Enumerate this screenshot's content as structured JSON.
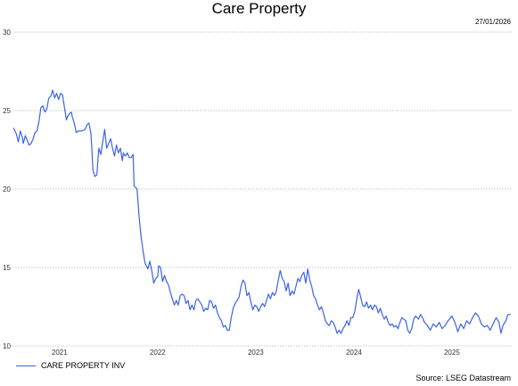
{
  "chart_data": {
    "type": "line",
    "title": "Care Property",
    "date_stamp": "27/01/2026",
    "source": "Source: LSEG Datastream",
    "ylim": [
      10,
      30
    ],
    "yticks": [
      10,
      15,
      20,
      25,
      30
    ],
    "xlim": [
      2020.52,
      2025.61
    ],
    "xticks": [
      {
        "label": "2021",
        "x": 2021.0
      },
      {
        "label": "2022",
        "x": 2022.0
      },
      {
        "label": "2023",
        "x": 2023.0
      },
      {
        "label": "2024",
        "x": 2024.0
      },
      {
        "label": "2025",
        "x": 2025.0
      }
    ],
    "grid": true,
    "legend_position": "bottom-left",
    "series": [
      {
        "name": "CARE PROPERTY INV",
        "color": "#3b63e8",
        "points": [
          [
            2020.53,
            23.9
          ],
          [
            2020.56,
            23.5
          ],
          [
            2020.58,
            23.0
          ],
          [
            2020.6,
            23.7
          ],
          [
            2020.62,
            23.3
          ],
          [
            2020.63,
            22.9
          ],
          [
            2020.65,
            23.4
          ],
          [
            2020.67,
            23.1
          ],
          [
            2020.69,
            22.8
          ],
          [
            2020.71,
            22.9
          ],
          [
            2020.73,
            23.2
          ],
          [
            2020.75,
            23.6
          ],
          [
            2020.77,
            23.7
          ],
          [
            2020.79,
            24.3
          ],
          [
            2020.81,
            25.2
          ],
          [
            2020.83,
            25.3
          ],
          [
            2020.85,
            24.9
          ],
          [
            2020.87,
            25.1
          ],
          [
            2020.89,
            25.8
          ],
          [
            2020.91,
            25.9
          ],
          [
            2020.93,
            26.3
          ],
          [
            2020.95,
            25.8
          ],
          [
            2020.97,
            26.1
          ],
          [
            2020.99,
            25.7
          ],
          [
            2021.01,
            26.1
          ],
          [
            2021.03,
            26.0
          ],
          [
            2021.05,
            25.2
          ],
          [
            2021.07,
            24.4
          ],
          [
            2021.08,
            24.6
          ],
          [
            2021.1,
            24.8
          ],
          [
            2021.12,
            24.9
          ],
          [
            2021.13,
            24.6
          ],
          [
            2021.15,
            24.2
          ],
          [
            2021.17,
            23.6
          ],
          [
            2021.19,
            23.7
          ],
          [
            2021.23,
            23.7
          ],
          [
            2021.26,
            23.8
          ],
          [
            2021.28,
            24.1
          ],
          [
            2021.3,
            24.2
          ],
          [
            2021.32,
            23.5
          ],
          [
            2021.33,
            22.5
          ],
          [
            2021.34,
            21.2
          ],
          [
            2021.36,
            20.8
          ],
          [
            2021.38,
            20.9
          ],
          [
            2021.4,
            22.6
          ],
          [
            2021.42,
            22.2
          ],
          [
            2021.44,
            23.0
          ],
          [
            2021.46,
            23.8
          ],
          [
            2021.48,
            22.6
          ],
          [
            2021.5,
            22.9
          ],
          [
            2021.52,
            23.2
          ],
          [
            2021.54,
            22.6
          ],
          [
            2021.56,
            22.1
          ],
          [
            2021.58,
            22.8
          ],
          [
            2021.6,
            22.3
          ],
          [
            2021.62,
            22.6
          ],
          [
            2021.64,
            21.8
          ],
          [
            2021.65,
            22.3
          ],
          [
            2021.67,
            22.1
          ],
          [
            2021.69,
            22.3
          ],
          [
            2021.71,
            22.0
          ],
          [
            2021.73,
            22.0
          ],
          [
            2021.75,
            22.2
          ],
          [
            2021.76,
            20.2
          ],
          [
            2021.79,
            20.0
          ],
          [
            2021.81,
            18.3
          ],
          [
            2021.83,
            17.0
          ],
          [
            2021.85,
            16.1
          ],
          [
            2021.87,
            15.3
          ],
          [
            2021.9,
            14.9
          ],
          [
            2021.92,
            15.4
          ],
          [
            2021.94,
            14.8
          ],
          [
            2021.96,
            14.0
          ],
          [
            2021.98,
            14.3
          ],
          [
            2022.0,
            14.4
          ],
          [
            2022.01,
            15.1
          ],
          [
            2022.03,
            15.0
          ],
          [
            2022.05,
            14.1
          ],
          [
            2022.07,
            14.5
          ],
          [
            2022.09,
            14.1
          ],
          [
            2022.11,
            13.9
          ],
          [
            2022.13,
            13.4
          ],
          [
            2022.15,
            13.0
          ],
          [
            2022.17,
            12.6
          ],
          [
            2022.19,
            12.9
          ],
          [
            2022.21,
            12.6
          ],
          [
            2022.23,
            13.2
          ],
          [
            2022.25,
            13.3
          ],
          [
            2022.27,
            13.2
          ],
          [
            2022.29,
            12.7
          ],
          [
            2022.31,
            12.9
          ],
          [
            2022.33,
            12.3
          ],
          [
            2022.35,
            12.6
          ],
          [
            2022.37,
            12.3
          ],
          [
            2022.39,
            12.9
          ],
          [
            2022.41,
            13.0
          ],
          [
            2022.43,
            12.8
          ],
          [
            2022.45,
            12.6
          ],
          [
            2022.47,
            12.2
          ],
          [
            2022.49,
            12.4
          ],
          [
            2022.51,
            12.3
          ],
          [
            2022.53,
            12.9
          ],
          [
            2022.55,
            12.8
          ],
          [
            2022.57,
            12.4
          ],
          [
            2022.59,
            12.6
          ],
          [
            2022.61,
            12.1
          ],
          [
            2022.63,
            11.8
          ],
          [
            2022.65,
            11.6
          ],
          [
            2022.67,
            11.2
          ],
          [
            2022.69,
            11.3
          ],
          [
            2022.71,
            11.0
          ],
          [
            2022.73,
            11.0
          ],
          [
            2022.75,
            11.8
          ],
          [
            2022.77,
            12.4
          ],
          [
            2022.79,
            12.7
          ],
          [
            2022.81,
            12.9
          ],
          [
            2022.83,
            13.1
          ],
          [
            2022.85,
            13.8
          ],
          [
            2022.87,
            14.2
          ],
          [
            2022.89,
            14.0
          ],
          [
            2022.91,
            13.2
          ],
          [
            2022.93,
            13.4
          ],
          [
            2022.95,
            12.8
          ],
          [
            2022.97,
            12.3
          ],
          [
            2022.99,
            12.6
          ],
          [
            2023.01,
            12.5
          ],
          [
            2023.03,
            12.2
          ],
          [
            2023.05,
            12.5
          ],
          [
            2023.07,
            12.7
          ],
          [
            2023.09,
            12.5
          ],
          [
            2023.11,
            12.9
          ],
          [
            2023.13,
            13.3
          ],
          [
            2023.15,
            13.0
          ],
          [
            2023.17,
            13.4
          ],
          [
            2023.19,
            13.2
          ],
          [
            2023.21,
            13.5
          ],
          [
            2023.23,
            14.2
          ],
          [
            2023.25,
            14.8
          ],
          [
            2023.27,
            14.3
          ],
          [
            2023.29,
            14.1
          ],
          [
            2023.31,
            13.5
          ],
          [
            2023.33,
            14.0
          ],
          [
            2023.35,
            13.2
          ],
          [
            2023.37,
            13.5
          ],
          [
            2023.39,
            13.3
          ],
          [
            2023.41,
            13.8
          ],
          [
            2023.43,
            14.3
          ],
          [
            2023.45,
            14.1
          ],
          [
            2023.47,
            14.5
          ],
          [
            2023.49,
            14.7
          ],
          [
            2023.51,
            14.0
          ],
          [
            2023.53,
            14.9
          ],
          [
            2023.55,
            14.2
          ],
          [
            2023.57,
            13.8
          ],
          [
            2023.59,
            13.2
          ],
          [
            2023.61,
            13.0
          ],
          [
            2023.63,
            12.6
          ],
          [
            2023.65,
            12.3
          ],
          [
            2023.67,
            12.5
          ],
          [
            2023.69,
            12.1
          ],
          [
            2023.71,
            11.6
          ],
          [
            2023.73,
            11.4
          ],
          [
            2023.75,
            11.3
          ],
          [
            2023.77,
            11.6
          ],
          [
            2023.79,
            11.5
          ],
          [
            2023.81,
            11.2
          ],
          [
            2023.83,
            10.8
          ],
          [
            2023.85,
            11.0
          ],
          [
            2023.87,
            10.8
          ],
          [
            2023.89,
            11.1
          ],
          [
            2023.91,
            11.3
          ],
          [
            2023.93,
            11.6
          ],
          [
            2023.95,
            11.3
          ],
          [
            2023.97,
            11.8
          ],
          [
            2023.99,
            11.8
          ],
          [
            2024.01,
            12.2
          ],
          [
            2024.03,
            13.0
          ],
          [
            2024.05,
            13.6
          ],
          [
            2024.07,
            13.1
          ],
          [
            2024.09,
            12.6
          ],
          [
            2024.11,
            12.5
          ],
          [
            2024.13,
            12.8
          ],
          [
            2024.15,
            12.4
          ],
          [
            2024.17,
            12.6
          ],
          [
            2024.19,
            12.3
          ],
          [
            2024.21,
            12.6
          ],
          [
            2024.23,
            12.5
          ],
          [
            2024.25,
            12.1
          ],
          [
            2024.27,
            12.4
          ],
          [
            2024.29,
            12.0
          ],
          [
            2024.31,
            11.7
          ],
          [
            2024.33,
            11.9
          ],
          [
            2024.35,
            11.5
          ],
          [
            2024.37,
            11.3
          ],
          [
            2024.39,
            11.4
          ],
          [
            2024.41,
            11.2
          ],
          [
            2024.43,
            11.3
          ],
          [
            2024.45,
            11.1
          ],
          [
            2024.47,
            11.5
          ],
          [
            2024.49,
            11.8
          ],
          [
            2024.51,
            11.7
          ],
          [
            2024.53,
            11.6
          ],
          [
            2024.55,
            11.0
          ],
          [
            2024.57,
            10.8
          ],
          [
            2024.59,
            11.1
          ],
          [
            2024.61,
            11.7
          ],
          [
            2024.63,
            11.9
          ],
          [
            2024.66,
            11.7
          ],
          [
            2024.68,
            12.0
          ],
          [
            2024.7,
            11.8
          ],
          [
            2024.72,
            11.5
          ],
          [
            2024.75,
            11.3
          ],
          [
            2024.78,
            11.0
          ],
          [
            2024.81,
            11.4
          ],
          [
            2024.84,
            11.2
          ],
          [
            2024.87,
            11.5
          ],
          [
            2024.9,
            11.1
          ],
          [
            2024.93,
            11.3
          ],
          [
            2024.96,
            11.6
          ],
          [
            2025.0,
            11.9
          ],
          [
            2025.03,
            11.5
          ],
          [
            2025.06,
            10.9
          ],
          [
            2025.09,
            11.4
          ],
          [
            2025.12,
            11.1
          ],
          [
            2025.15,
            11.6
          ],
          [
            2025.18,
            11.4
          ],
          [
            2025.21,
            11.8
          ],
          [
            2025.24,
            12.1
          ],
          [
            2025.27,
            11.9
          ],
          [
            2025.3,
            11.4
          ],
          [
            2025.33,
            11.2
          ],
          [
            2025.36,
            11.3
          ],
          [
            2025.39,
            11.0
          ],
          [
            2025.42,
            11.4
          ],
          [
            2025.45,
            11.8
          ],
          [
            2025.48,
            11.5
          ],
          [
            2025.5,
            10.8
          ],
          [
            2025.52,
            11.3
          ],
          [
            2025.55,
            11.6
          ],
          [
            2025.57,
            12.0
          ],
          [
            2025.6,
            12.0
          ]
        ]
      }
    ]
  }
}
